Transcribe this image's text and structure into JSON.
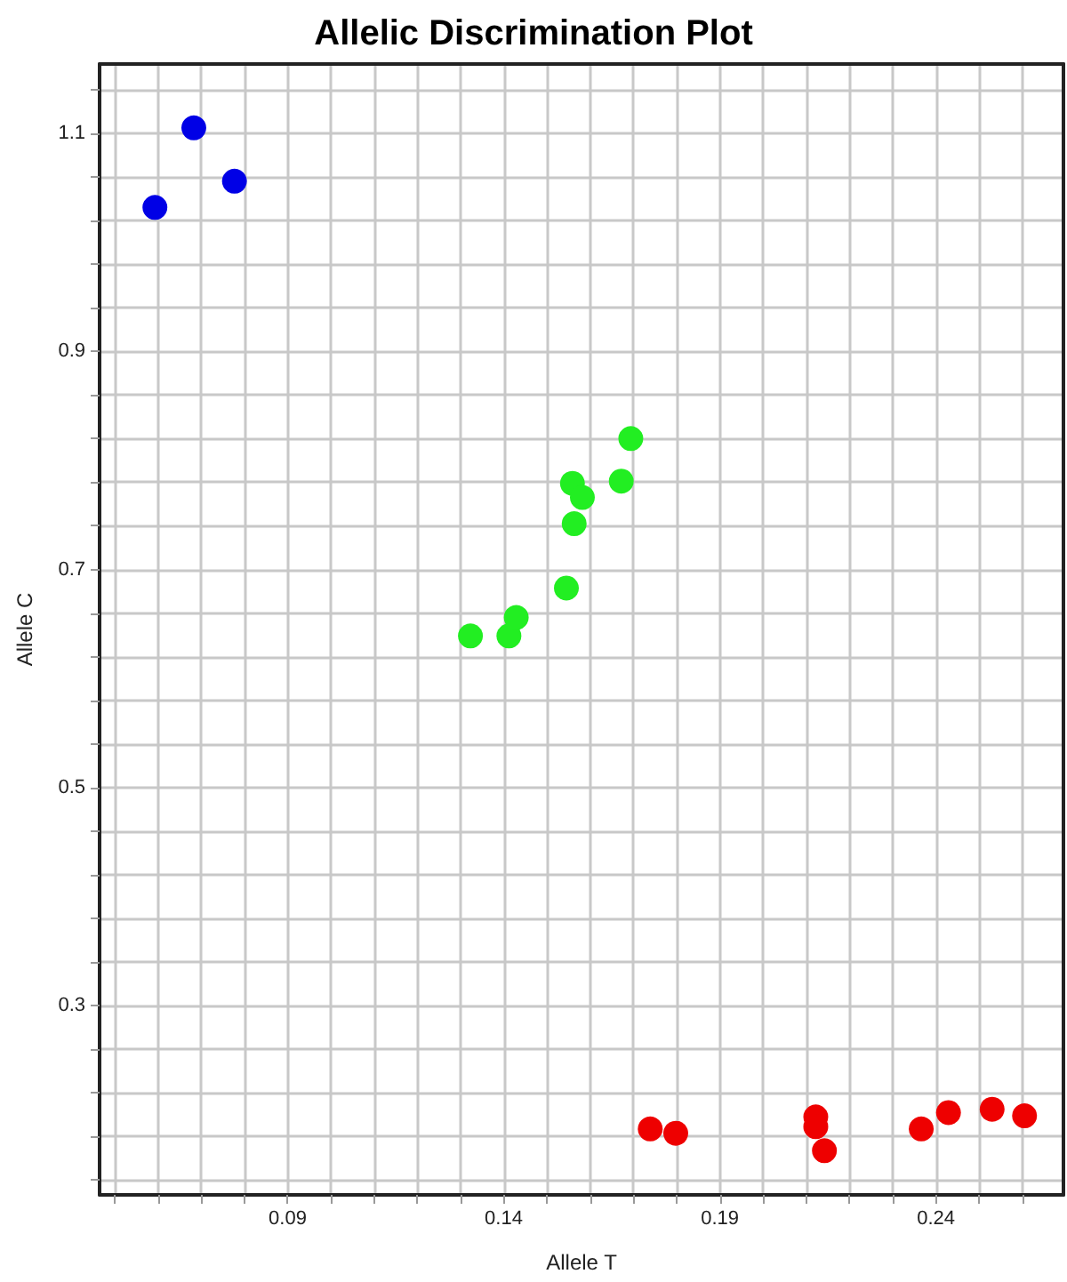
{
  "chart_data": {
    "type": "scatter",
    "title": "Allelic Discrimination Plot",
    "xlabel": "Allele T",
    "ylabel": "Allele C",
    "series": [
      {
        "color": "#0000e6",
        "x": [
          0.0593,
          0.0683,
          0.0777
        ],
        "values": [
          1.032,
          1.105,
          1.056
        ]
      },
      {
        "color": "#22ee22",
        "x": [
          0.1323,
          0.1412,
          0.1429,
          0.1545,
          0.1563,
          0.1559,
          0.1582,
          0.1672,
          0.1694
        ],
        "values": [
          0.639,
          0.639,
          0.656,
          0.683,
          0.742,
          0.779,
          0.766,
          0.781,
          0.82
        ]
      },
      {
        "color": "#ee0000",
        "x": [
          0.1739,
          0.1798,
          0.2122,
          0.2122,
          0.2142,
          0.2366,
          0.2429,
          0.253,
          0.2605
        ],
        "values": [
          0.187,
          0.183,
          0.198,
          0.189,
          0.167,
          0.187,
          0.202,
          0.205,
          0.199
        ]
      }
    ],
    "xlim": [
      0.0465,
      0.2695
    ],
    "ylim": [
      0.1265,
      1.1635
    ],
    "xticks": [
      {
        "value": 0.05,
        "label": null
      },
      {
        "value": 0.06,
        "label": null
      },
      {
        "value": 0.07,
        "label": null
      },
      {
        "value": 0.08,
        "label": null
      },
      0.09,
      {
        "value": 0.1,
        "label": null
      },
      {
        "value": 0.11,
        "label": null
      },
      {
        "value": 0.12,
        "label": null
      },
      {
        "value": 0.13,
        "label": null
      },
      0.14,
      {
        "value": 0.15,
        "label": null
      },
      {
        "value": 0.16,
        "label": null
      },
      {
        "value": 0.17,
        "label": null
      },
      {
        "value": 0.18,
        "label": null
      },
      0.19,
      {
        "value": 0.2,
        "label": null
      },
      {
        "value": 0.21,
        "label": null
      },
      {
        "value": 0.22,
        "label": null
      },
      {
        "value": 0.23,
        "label": null
      },
      0.24,
      {
        "value": 0.25,
        "label": null
      },
      {
        "value": 0.26,
        "label": null
      }
    ],
    "yticks": [
      {
        "value": 0.14,
        "label": null
      },
      {
        "value": 0.18,
        "label": null
      },
      {
        "value": 0.22,
        "label": null
      },
      {
        "value": 0.26,
        "label": null
      },
      0.3,
      {
        "value": 0.34,
        "label": null
      },
      {
        "value": 0.38,
        "label": null
      },
      {
        "value": 0.42,
        "label": null
      },
      {
        "value": 0.46,
        "label": null
      },
      0.5,
      {
        "value": 0.54,
        "label": null
      },
      {
        "value": 0.58,
        "label": null
      },
      {
        "value": 0.62,
        "label": null
      },
      {
        "value": 0.66,
        "label": null
      },
      0.7,
      {
        "value": 0.74,
        "label": null
      },
      {
        "value": 0.78,
        "label": null
      },
      {
        "value": 0.82,
        "label": null
      },
      {
        "value": 0.86,
        "label": null
      },
      0.9,
      {
        "value": 0.94,
        "label": null
      },
      {
        "value": 0.98,
        "label": null
      },
      {
        "value": 1.02,
        "label": null
      },
      {
        "value": 1.06,
        "label": null
      },
      1.1,
      {
        "value": 1.14,
        "label": null
      }
    ],
    "grid": true,
    "marker": "circle"
  }
}
